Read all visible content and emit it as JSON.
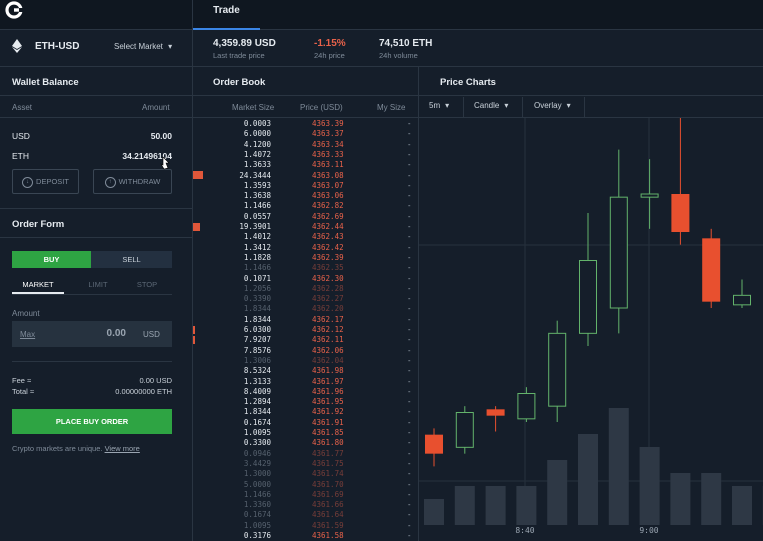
{
  "header": {
    "tab_trade": "Trade"
  },
  "market": {
    "pair": "ETH-USD",
    "select_label": "Select Market",
    "last_price": "4,359.89 USD",
    "last_price_label": "Last trade price",
    "change": "-1.15%",
    "change_label": "24h price",
    "volume": "74,510 ETH",
    "volume_label": "24h volume"
  },
  "wallet": {
    "title": "Wallet Balance",
    "col_asset": "Asset",
    "col_amount": "Amount",
    "rows": [
      {
        "asset": "USD",
        "amount": "50.00"
      },
      {
        "asset": "ETH",
        "amount": "34.21496104"
      }
    ],
    "deposit_label": "DEPOSIT",
    "withdraw_label": "WITHDRAW"
  },
  "order_form": {
    "title": "Order Form",
    "buy_label": "BUY",
    "sell_label": "SELL",
    "types": [
      "MARKET",
      "LIMIT",
      "STOP"
    ],
    "amount_label": "Amount",
    "max_label": "Max",
    "amount_value": "0.00",
    "amount_currency": "USD",
    "fee_label": "Fee ≈",
    "fee_value": "0.00 USD",
    "total_label": "Total ≈",
    "total_value": "0.00000000 ETH",
    "place_label": "PLACE BUY ORDER",
    "note": "Crypto markets are unique.",
    "note_link": "View more"
  },
  "order_book": {
    "title": "Order Book",
    "col_size": "Market Size",
    "col_price": "Price (USD)",
    "col_my": "My Size",
    "rows": [
      {
        "size": "0.0003",
        "price": "4363.39",
        "my": "-",
        "dim": false,
        "depth": 0
      },
      {
        "size": "6.0000",
        "price": "4363.37",
        "my": "-",
        "dim": false,
        "depth": 0
      },
      {
        "size": "4.1200",
        "price": "4363.34",
        "my": "-",
        "dim": false,
        "depth": 0
      },
      {
        "size": "1.4072",
        "price": "4363.33",
        "my": "-",
        "dim": false,
        "depth": 0
      },
      {
        "size": "1.3633",
        "price": "4363.11",
        "my": "-",
        "dim": false,
        "depth": 0
      },
      {
        "size": "24.3444",
        "price": "4363.08",
        "my": "-",
        "dim": false,
        "depth": 10
      },
      {
        "size": "1.3593",
        "price": "4363.07",
        "my": "-",
        "dim": false,
        "depth": 0
      },
      {
        "size": "1.3638",
        "price": "4363.06",
        "my": "-",
        "dim": false,
        "depth": 0
      },
      {
        "size": "1.1466",
        "price": "4362.82",
        "my": "-",
        "dim": false,
        "depth": 0
      },
      {
        "size": "0.0557",
        "price": "4362.69",
        "my": "-",
        "dim": false,
        "depth": 0
      },
      {
        "size": "19.3901",
        "price": "4362.44",
        "my": "-",
        "dim": false,
        "depth": 7
      },
      {
        "size": "1.4012",
        "price": "4362.43",
        "my": "-",
        "dim": false,
        "depth": 0
      },
      {
        "size": "1.3412",
        "price": "4362.42",
        "my": "-",
        "dim": false,
        "depth": 0
      },
      {
        "size": "1.1828",
        "price": "4362.39",
        "my": "-",
        "dim": false,
        "depth": 0
      },
      {
        "size": "1.1466",
        "price": "4362.35",
        "my": "-",
        "dim": true,
        "depth": 0
      },
      {
        "size": "0.1071",
        "price": "4362.30",
        "my": "-",
        "dim": false,
        "depth": 0
      },
      {
        "size": "1.2056",
        "price": "4362.28",
        "my": "-",
        "dim": true,
        "depth": 0
      },
      {
        "size": "0.3390",
        "price": "4362.27",
        "my": "-",
        "dim": true,
        "depth": 0
      },
      {
        "size": "1.8344",
        "price": "4362.20",
        "my": "-",
        "dim": true,
        "depth": 0
      },
      {
        "size": "1.8344",
        "price": "4362.17",
        "my": "-",
        "dim": false,
        "depth": 0
      },
      {
        "size": "6.0300",
        "price": "4362.12",
        "my": "-",
        "dim": false,
        "depth": 2
      },
      {
        "size": "7.9207",
        "price": "4362.11",
        "my": "-",
        "dim": false,
        "depth": 2
      },
      {
        "size": "7.8576",
        "price": "4362.06",
        "my": "-",
        "dim": false,
        "depth": 0
      },
      {
        "size": "1.3006",
        "price": "4362.04",
        "my": "-",
        "dim": true,
        "depth": 0
      },
      {
        "size": "8.5324",
        "price": "4361.98",
        "my": "-",
        "dim": false,
        "depth": 0
      },
      {
        "size": "1.3133",
        "price": "4361.97",
        "my": "-",
        "dim": false,
        "depth": 0
      },
      {
        "size": "8.4009",
        "price": "4361.96",
        "my": "-",
        "dim": false,
        "depth": 0
      },
      {
        "size": "1.2894",
        "price": "4361.95",
        "my": "-",
        "dim": false,
        "depth": 0
      },
      {
        "size": "1.8344",
        "price": "4361.92",
        "my": "-",
        "dim": false,
        "depth": 0
      },
      {
        "size": "0.1674",
        "price": "4361.91",
        "my": "-",
        "dim": false,
        "depth": 0
      },
      {
        "size": "1.0095",
        "price": "4361.85",
        "my": "-",
        "dim": false,
        "depth": 0
      },
      {
        "size": "0.3300",
        "price": "4361.80",
        "my": "-",
        "dim": false,
        "depth": 0
      },
      {
        "size": "0.0946",
        "price": "4361.77",
        "my": "-",
        "dim": true,
        "depth": 0
      },
      {
        "size": "3.4429",
        "price": "4361.75",
        "my": "-",
        "dim": true,
        "depth": 0
      },
      {
        "size": "1.3000",
        "price": "4361.74",
        "my": "-",
        "dim": true,
        "depth": 0
      },
      {
        "size": "5.0000",
        "price": "4361.70",
        "my": "-",
        "dim": true,
        "depth": 0
      },
      {
        "size": "1.1466",
        "price": "4361.69",
        "my": "-",
        "dim": true,
        "depth": 0
      },
      {
        "size": "1.3360",
        "price": "4361.66",
        "my": "-",
        "dim": true,
        "depth": 0
      },
      {
        "size": "0.1674",
        "price": "4361.64",
        "my": "-",
        "dim": true,
        "depth": 0
      },
      {
        "size": "1.0095",
        "price": "4361.59",
        "my": "-",
        "dim": true,
        "depth": 0
      },
      {
        "size": "0.3176",
        "price": "4361.58",
        "my": "-",
        "dim": false,
        "depth": 0
      }
    ]
  },
  "price_chart": {
    "title": "Price Charts",
    "interval_label": "5m",
    "type_label": "Candle",
    "overlay_label": "Overlay"
  },
  "chart_data": {
    "type": "candlestick",
    "x_ticks": [
      "8:40",
      "9:00"
    ],
    "candles": [
      {
        "open": 4350,
        "close": 4344,
        "high": 4352,
        "low": 4340,
        "dir": "down"
      },
      {
        "open": 4346,
        "close": 4357,
        "high": 4359,
        "low": 4344,
        "dir": "up"
      },
      {
        "open": 4358,
        "close": 4356,
        "high": 4359,
        "low": 4351,
        "dir": "down"
      },
      {
        "open": 4355,
        "close": 4363,
        "high": 4365,
        "low": 4354,
        "dir": "up"
      },
      {
        "open": 4359,
        "close": 4382,
        "high": 4386,
        "low": 4354,
        "dir": "up"
      },
      {
        "open": 4382,
        "close": 4405,
        "high": 4420,
        "low": 4378,
        "dir": "up"
      },
      {
        "open": 4390,
        "close": 4425,
        "high": 4440,
        "low": 4382,
        "dir": "up"
      },
      {
        "open": 4425,
        "close": 4426,
        "high": 4437,
        "low": 4415,
        "dir": "up"
      },
      {
        "open": 4426,
        "close": 4414,
        "high": 4450,
        "low": 4410,
        "dir": "down"
      },
      {
        "open": 4412,
        "close": 4392,
        "high": 4415,
        "low": 4390,
        "dir": "down"
      },
      {
        "open": 4391,
        "close": 4394,
        "high": 4399,
        "low": 4390,
        "dir": "up"
      },
      {
        "open": 4392,
        "close": 4402,
        "high": 4403,
        "low": 4392,
        "dir": "up"
      }
    ],
    "volume": [
      2,
      3,
      3,
      3,
      5,
      7,
      9,
      6,
      4,
      4,
      3,
      3
    ],
    "colors": {
      "up": "#63b36b",
      "down": "#e8502f",
      "volume": "#2e3845"
    }
  },
  "colors": {
    "accent": "#3b86e6",
    "buy": "#2ea443",
    "negative": "#e8624a",
    "background": "#151e2a"
  }
}
